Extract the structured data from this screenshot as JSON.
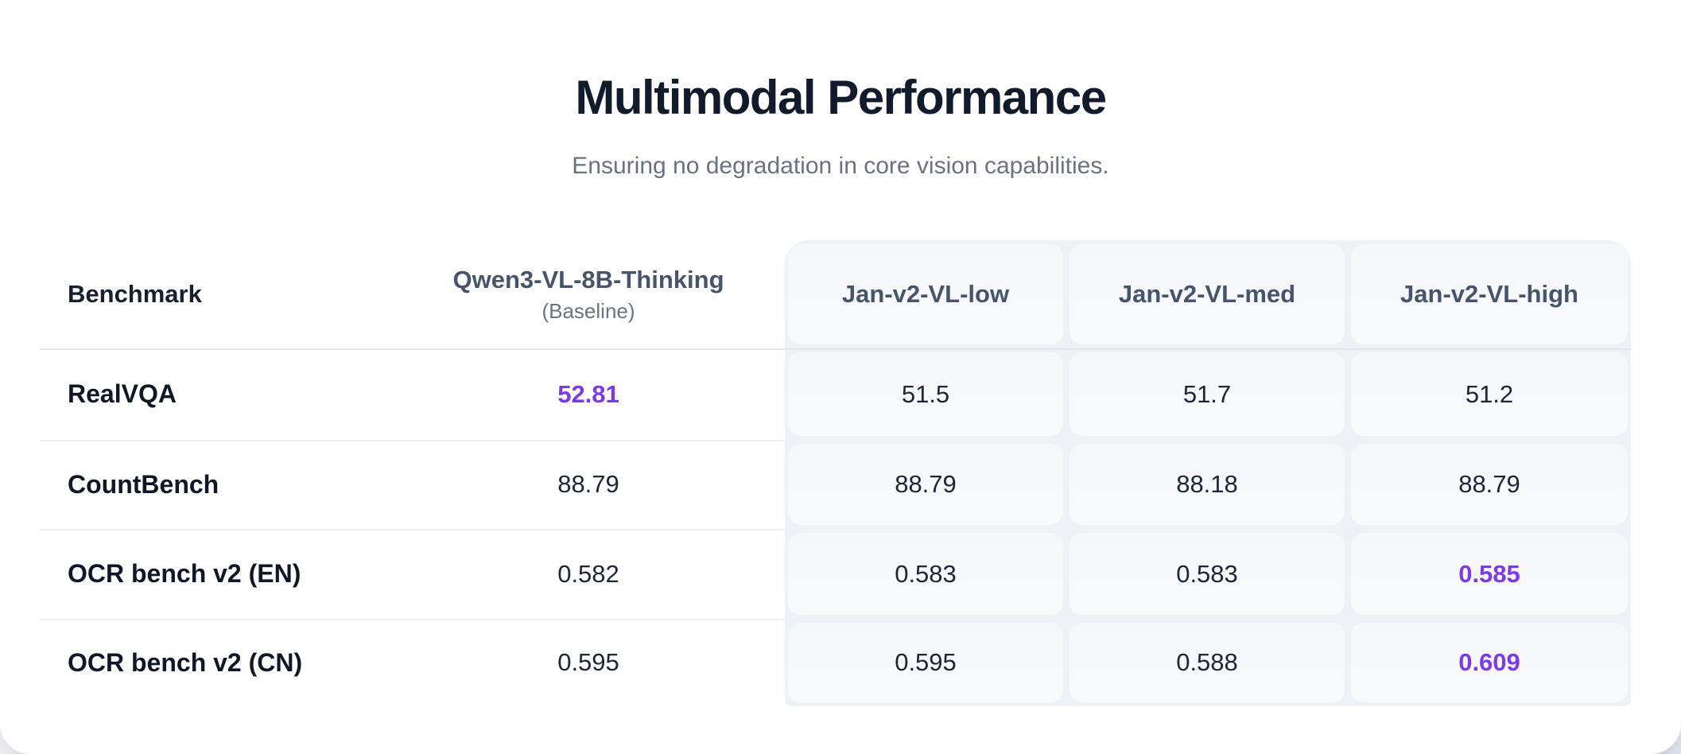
{
  "ui": {
    "title": "Multimodal Performance",
    "subtitle": "Ensuring no degradation in core vision capabilities.",
    "table": {
      "header": {
        "benchmark": "Benchmark",
        "baseline_name": "Qwen3-VL-8B-Thinking",
        "baseline_tag": "(Baseline)",
        "models": [
          "Jan-v2-VL-low",
          "Jan-v2-VL-med",
          "Jan-v2-VL-high"
        ]
      },
      "rows": [
        {
          "benchmark": "RealVQA",
          "baseline": {
            "text": "52.81",
            "highlight": true
          },
          "values": [
            {
              "text": "51.5",
              "highlight": false
            },
            {
              "text": "51.7",
              "highlight": false
            },
            {
              "text": "51.2",
              "highlight": false
            }
          ]
        },
        {
          "benchmark": "CountBench",
          "baseline": {
            "text": "88.79",
            "highlight": false
          },
          "values": [
            {
              "text": "88.79",
              "highlight": false
            },
            {
              "text": "88.18",
              "highlight": false
            },
            {
              "text": "88.79",
              "highlight": false
            }
          ]
        },
        {
          "benchmark": "OCR bench v2 (EN)",
          "baseline": {
            "text": "0.582",
            "highlight": false
          },
          "values": [
            {
              "text": "0.583",
              "highlight": false
            },
            {
              "text": "0.583",
              "highlight": false
            },
            {
              "text": "0.585",
              "highlight": true
            }
          ]
        },
        {
          "benchmark": "OCR bench v2 (CN)",
          "baseline": {
            "text": "0.595",
            "highlight": false
          },
          "values": [
            {
              "text": "0.595",
              "highlight": false
            },
            {
              "text": "0.588",
              "highlight": false
            },
            {
              "text": "0.609",
              "highlight": true
            }
          ]
        }
      ]
    },
    "colors": {
      "accent": "#7c3aed",
      "title_text": "#101b2c",
      "subtitle_text": "#6a7282",
      "value_text": "#1c2634",
      "panel_background": "#eef1f5",
      "divider": "#e2e5e9"
    }
  },
  "chart_data": {
    "type": "table",
    "title": "Multimodal Performance",
    "subtitle": "Ensuring no degradation in core vision capabilities.",
    "columns": [
      "Benchmark",
      "Qwen3-VL-8B-Thinking (Baseline)",
      "Jan-v2-VL-low",
      "Jan-v2-VL-med",
      "Jan-v2-VL-high"
    ],
    "rows": [
      [
        "RealVQA",
        52.81,
        51.5,
        51.7,
        51.2
      ],
      [
        "CountBench",
        88.79,
        88.79,
        88.18,
        88.79
      ],
      [
        "OCR bench v2 (EN)",
        0.582,
        0.583,
        0.583,
        0.585
      ],
      [
        "OCR bench v2 (CN)",
        0.595,
        0.595,
        0.588,
        0.609
      ]
    ],
    "highlighted_cells": [
      {
        "row": "RealVQA",
        "column": "Qwen3-VL-8B-Thinking (Baseline)",
        "value": 52.81
      },
      {
        "row": "OCR bench v2 (EN)",
        "column": "Jan-v2-VL-high",
        "value": 0.585
      },
      {
        "row": "OCR bench v2 (CN)",
        "column": "Jan-v2-VL-high",
        "value": 0.609
      }
    ],
    "highlight_color": "#7c3aed"
  }
}
